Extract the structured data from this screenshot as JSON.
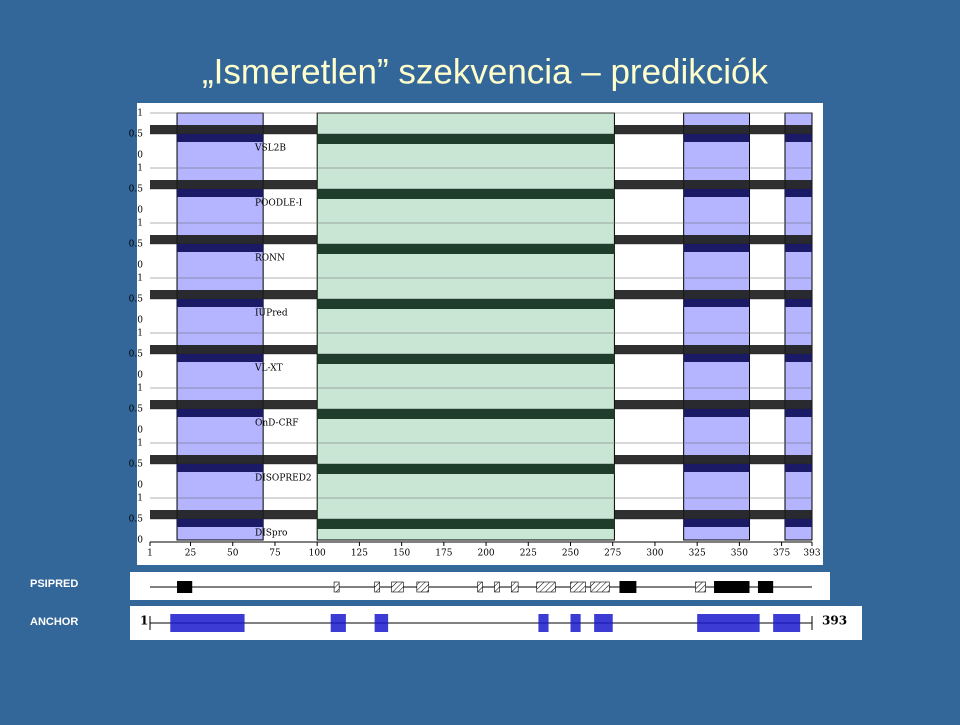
{
  "title": "„Ismeretlen” szekvencia – predikciók",
  "figure": {
    "xlim": [
      1,
      393
    ],
    "xticks": [
      1,
      25,
      50,
      75,
      100,
      125,
      150,
      175,
      200,
      225,
      250,
      275,
      300,
      325,
      350,
      375,
      393
    ],
    "ylim": [
      0,
      1
    ],
    "yticks": [
      0,
      0.5,
      1
    ],
    "tracks": [
      "VSL2B",
      "POODLE-I",
      "RONN",
      "IUPred",
      "VL-XT",
      "OnD-CRF",
      "DISOPRED2",
      "DISpro"
    ],
    "regions": [
      {
        "start": 17,
        "end": 68,
        "color": "#b4b4ff"
      },
      {
        "start": 100,
        "end": 276,
        "color": "#c9e6d5"
      },
      {
        "start": 317,
        "end": 356,
        "color": "#b4b4ff"
      },
      {
        "start": 377,
        "end": 393,
        "color": "#b4b4ff"
      }
    ]
  },
  "psipred": {
    "label": "PSIPRED",
    "helices": [
      {
        "start": 17,
        "end": 26
      },
      {
        "start": 279,
        "end": 289
      },
      {
        "start": 335,
        "end": 356
      },
      {
        "start": 361,
        "end": 370
      }
    ],
    "strands": [
      {
        "start": 110,
        "end": 113
      },
      {
        "start": 134,
        "end": 137
      },
      {
        "start": 144,
        "end": 151
      },
      {
        "start": 159,
        "end": 166
      },
      {
        "start": 195,
        "end": 198
      },
      {
        "start": 205,
        "end": 208
      },
      {
        "start": 215,
        "end": 219
      },
      {
        "start": 230,
        "end": 241
      },
      {
        "start": 250,
        "end": 259
      },
      {
        "start": 262,
        "end": 273
      },
      {
        "start": 324,
        "end": 330
      }
    ]
  },
  "anchor": {
    "label": "ANCHOR",
    "first": "1",
    "last": "393",
    "segments": [
      {
        "start": 13,
        "end": 57
      },
      {
        "start": 108,
        "end": 117
      },
      {
        "start": 134,
        "end": 142
      },
      {
        "start": 231,
        "end": 237
      },
      {
        "start": 250,
        "end": 256
      },
      {
        "start": 264,
        "end": 275
      },
      {
        "start": 325,
        "end": 362
      },
      {
        "start": 370,
        "end": 386
      }
    ]
  }
}
